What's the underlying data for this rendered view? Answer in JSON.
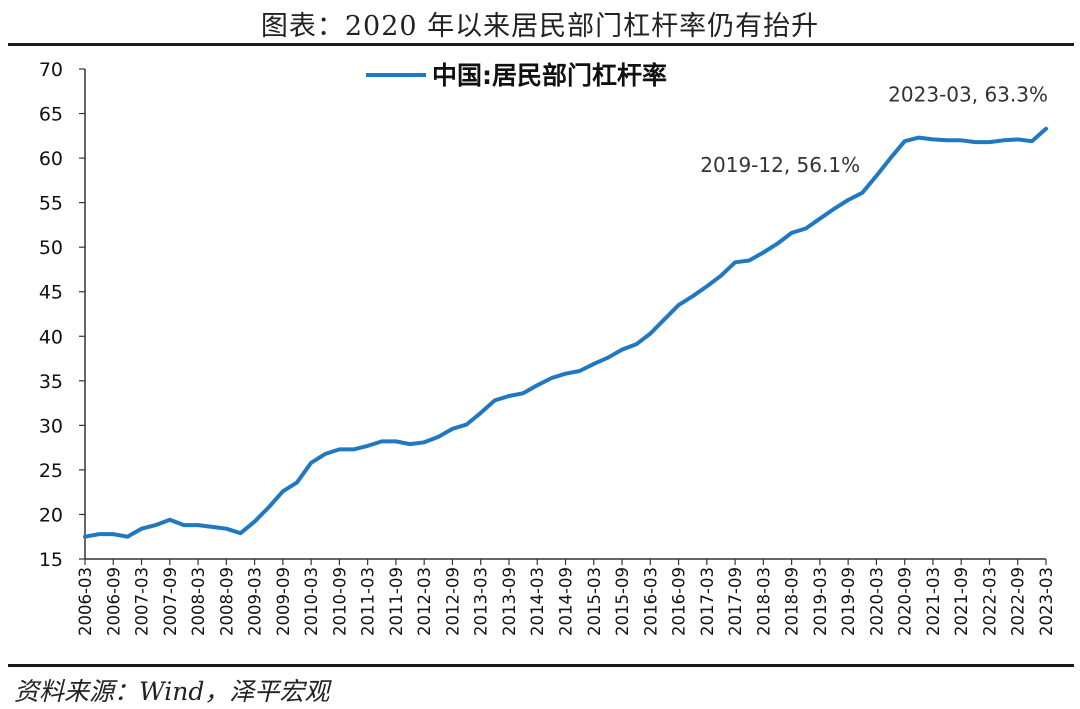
{
  "title": "图表：2020 年以来居民部门杠杆率仍有抬升",
  "source": "资料来源：Wind，泽平宏观",
  "colors": {
    "series": "#1f78c1",
    "axis": "#333333",
    "rule": "#1a1a1a"
  },
  "chart_data": {
    "type": "line",
    "title": "",
    "xlabel": "",
    "ylabel": "",
    "ylim": [
      15,
      70
    ],
    "yticks": [
      15,
      20,
      25,
      30,
      35,
      40,
      45,
      50,
      55,
      60,
      65,
      70
    ],
    "grid": false,
    "legend_position": "top-center",
    "x_tick_labels": [
      "2006-03",
      "2006-09",
      "2007-03",
      "2007-09",
      "2008-03",
      "2008-09",
      "2009-03",
      "2009-09",
      "2010-03",
      "2010-09",
      "2011-03",
      "2011-09",
      "2012-03",
      "2012-09",
      "2013-03",
      "2013-09",
      "2014-03",
      "2014-09",
      "2015-03",
      "2015-09",
      "2016-03",
      "2016-09",
      "2017-03",
      "2017-09",
      "2018-03",
      "2018-09",
      "2019-03",
      "2019-09",
      "2020-03",
      "2020-09",
      "2021-03",
      "2021-09",
      "2022-03",
      "2022-09",
      "2023-03"
    ],
    "series": [
      {
        "name": "中国:居民部门杠杆率",
        "x": [
          "2006-03",
          "2006-06",
          "2006-09",
          "2006-12",
          "2007-03",
          "2007-06",
          "2007-09",
          "2007-12",
          "2008-03",
          "2008-06",
          "2008-09",
          "2008-12",
          "2009-03",
          "2009-06",
          "2009-09",
          "2009-12",
          "2010-03",
          "2010-06",
          "2010-09",
          "2010-12",
          "2011-03",
          "2011-06",
          "2011-09",
          "2011-12",
          "2012-03",
          "2012-06",
          "2012-09",
          "2012-12",
          "2013-03",
          "2013-06",
          "2013-09",
          "2013-12",
          "2014-03",
          "2014-06",
          "2014-09",
          "2014-12",
          "2015-03",
          "2015-06",
          "2015-09",
          "2015-12",
          "2016-03",
          "2016-06",
          "2016-09",
          "2016-12",
          "2017-03",
          "2017-06",
          "2017-09",
          "2017-12",
          "2018-03",
          "2018-06",
          "2018-09",
          "2018-12",
          "2019-03",
          "2019-06",
          "2019-09",
          "2019-12",
          "2020-03",
          "2020-06",
          "2020-09",
          "2020-12",
          "2021-03",
          "2021-06",
          "2021-09",
          "2021-12",
          "2022-03",
          "2022-06",
          "2022-09",
          "2022-12",
          "2023-03"
        ],
        "values": [
          17.5,
          17.8,
          17.8,
          17.5,
          18.4,
          18.8,
          19.4,
          18.8,
          18.8,
          18.6,
          18.4,
          17.9,
          19.2,
          20.8,
          22.6,
          23.6,
          25.8,
          26.8,
          27.3,
          27.3,
          27.7,
          28.2,
          28.2,
          27.9,
          28.1,
          28.7,
          29.6,
          30.1,
          31.4,
          32.8,
          33.3,
          33.6,
          34.5,
          35.3,
          35.8,
          36.1,
          36.9,
          37.6,
          38.5,
          39.1,
          40.3,
          41.9,
          43.5,
          44.5,
          45.6,
          46.8,
          48.3,
          48.5,
          49.4,
          50.4,
          51.6,
          52.1,
          53.2,
          54.3,
          55.3,
          56.1,
          58.0,
          60.0,
          61.9,
          62.3,
          62.1,
          62.0,
          62.0,
          61.8,
          61.8,
          62.0,
          62.1,
          61.9,
          63.3
        ]
      }
    ],
    "annotations": [
      {
        "text": "2019-12, 56.1%",
        "x": "2019-12",
        "y": 56.1
      },
      {
        "text": "2023-03, 63.3%",
        "x": "2023-03",
        "y": 63.3
      }
    ]
  }
}
